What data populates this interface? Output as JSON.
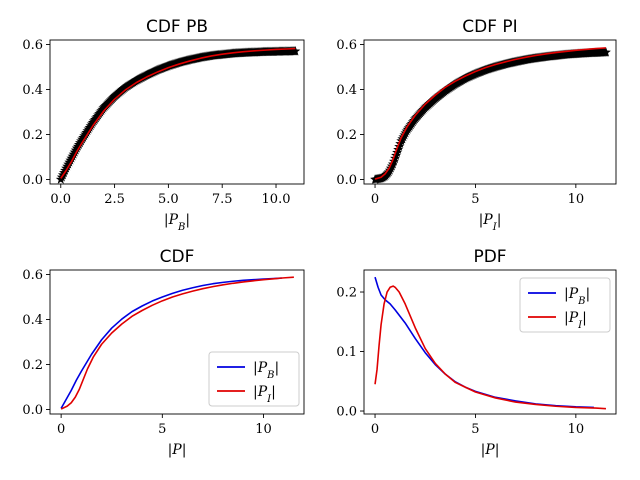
{
  "chart_data": [
    {
      "type": "line",
      "title": "CDF PB",
      "xlabel": "|P_B|",
      "ylabel": "",
      "xlim": [
        -0.5,
        11.3
      ],
      "ylim": [
        -0.02,
        0.62
      ],
      "xticks": [
        0.0,
        2.5,
        5.0,
        7.5,
        10.0
      ],
      "xtick_labels": [
        "0.0",
        "2.5",
        "5.0",
        "7.5",
        "10.0"
      ],
      "yticks": [
        0.0,
        0.2,
        0.4,
        0.6
      ],
      "ytick_labels": [
        "0.0",
        "0.2",
        "0.4",
        "0.6"
      ],
      "series": [
        {
          "style": "star-markers",
          "color": "#000000",
          "x": [
            0,
            0.25,
            0.5,
            0.75,
            1.0,
            1.5,
            2.0,
            2.5,
            3.0,
            3.5,
            4.0,
            4.5,
            5.0,
            5.5,
            6.0,
            6.5,
            7.0,
            7.5,
            8.0,
            8.5,
            9.0,
            9.5,
            10.0,
            10.5,
            10.9
          ],
          "values": [
            0.0,
            0.05,
            0.095,
            0.14,
            0.18,
            0.255,
            0.32,
            0.37,
            0.41,
            0.44,
            0.465,
            0.487,
            0.505,
            0.52,
            0.532,
            0.542,
            0.55,
            0.555,
            0.56,
            0.563,
            0.565,
            0.567,
            0.568,
            0.569,
            0.57
          ]
        },
        {
          "style": "line",
          "color": "#e00000",
          "x": [
            0,
            0.25,
            0.5,
            0.75,
            1.0,
            1.5,
            2.0,
            2.5,
            3.0,
            3.5,
            4.0,
            4.5,
            5.0,
            5.5,
            6.0,
            6.5,
            7.0,
            7.5,
            8.0,
            8.5,
            9.0,
            9.5,
            10.0,
            10.5,
            10.9
          ],
          "values": [
            0.005,
            0.04,
            0.08,
            0.125,
            0.165,
            0.24,
            0.305,
            0.357,
            0.398,
            0.43,
            0.456,
            0.478,
            0.497,
            0.513,
            0.527,
            0.539,
            0.549,
            0.557,
            0.563,
            0.568,
            0.572,
            0.575,
            0.578,
            0.58,
            0.582
          ]
        }
      ]
    },
    {
      "type": "line",
      "title": "CDF PI",
      "xlabel": "|P_I|",
      "ylabel": "",
      "xlim": [
        -0.55,
        12.0
      ],
      "ylim": [
        -0.02,
        0.62
      ],
      "xticks": [
        0,
        5,
        10
      ],
      "xtick_labels": [
        "0",
        "5",
        "10"
      ],
      "yticks": [
        0.0,
        0.2,
        0.4,
        0.6
      ],
      "ytick_labels": [
        "0.0",
        "0.2",
        "0.4",
        "0.6"
      ],
      "series": [
        {
          "style": "star-markers",
          "color": "#000000",
          "x": [
            0,
            0.3,
            0.5,
            0.7,
            0.9,
            1.1,
            1.3,
            1.6,
            2.0,
            2.5,
            3.0,
            3.5,
            4.0,
            4.5,
            5.0,
            5.5,
            6.0,
            6.5,
            7.0,
            7.5,
            8.0,
            8.5,
            9.0,
            9.5,
            10.0,
            10.5,
            11.0,
            11.5
          ],
          "values": [
            0.0,
            0.005,
            0.015,
            0.035,
            0.07,
            0.12,
            0.17,
            0.22,
            0.27,
            0.32,
            0.36,
            0.395,
            0.425,
            0.45,
            0.47,
            0.487,
            0.501,
            0.513,
            0.523,
            0.532,
            0.539,
            0.545,
            0.55,
            0.555,
            0.558,
            0.561,
            0.563,
            0.565
          ]
        },
        {
          "style": "line",
          "color": "#e00000",
          "x": [
            0,
            0.3,
            0.5,
            0.7,
            0.9,
            1.1,
            1.3,
            1.6,
            2.0,
            2.5,
            3.0,
            3.5,
            4.0,
            4.5,
            5.0,
            5.5,
            6.0,
            6.5,
            7.0,
            7.5,
            8.0,
            8.5,
            9.0,
            9.5,
            10.0,
            10.5,
            11.0,
            11.5
          ],
          "values": [
            0.002,
            0.01,
            0.025,
            0.05,
            0.09,
            0.14,
            0.185,
            0.235,
            0.285,
            0.335,
            0.375,
            0.41,
            0.437,
            0.46,
            0.48,
            0.497,
            0.511,
            0.523,
            0.534,
            0.543,
            0.551,
            0.558,
            0.564,
            0.569,
            0.574,
            0.578,
            0.582,
            0.585
          ]
        }
      ]
    },
    {
      "type": "line",
      "title": "CDF",
      "xlabel": "|P|",
      "ylabel": "",
      "xlim": [
        -0.55,
        12.0
      ],
      "ylim": [
        -0.02,
        0.62
      ],
      "xticks": [
        0,
        5,
        10
      ],
      "xtick_labels": [
        "0",
        "5",
        "10"
      ],
      "yticks": [
        0.0,
        0.2,
        0.4,
        0.6
      ],
      "ytick_labels": [
        "0.0",
        "0.2",
        "0.4",
        "0.6"
      ],
      "legend": "lower-right",
      "series": [
        {
          "name": "|P_B|",
          "color": "#0000e0",
          "x": [
            0,
            0.25,
            0.5,
            0.75,
            1.0,
            1.5,
            2.0,
            2.5,
            3.0,
            3.5,
            4.0,
            4.5,
            5.0,
            5.5,
            6.0,
            6.5,
            7.0,
            7.5,
            8.0,
            8.5,
            9.0,
            9.5,
            10.0,
            10.5,
            10.9
          ],
          "values": [
            0.005,
            0.045,
            0.085,
            0.13,
            0.17,
            0.245,
            0.31,
            0.362,
            0.402,
            0.435,
            0.46,
            0.482,
            0.5,
            0.516,
            0.53,
            0.541,
            0.551,
            0.559,
            0.565,
            0.57,
            0.574,
            0.577,
            0.58,
            0.582,
            0.584
          ]
        },
        {
          "name": "|P_I|",
          "color": "#e00000",
          "x": [
            0,
            0.3,
            0.5,
            0.7,
            0.9,
            1.1,
            1.3,
            1.6,
            2.0,
            2.5,
            3.0,
            3.5,
            4.0,
            4.5,
            5.0,
            5.5,
            6.0,
            6.5,
            7.0,
            7.5,
            8.0,
            8.5,
            9.0,
            9.5,
            10.0,
            10.5,
            11.0,
            11.5
          ],
          "values": [
            0.002,
            0.015,
            0.03,
            0.055,
            0.09,
            0.135,
            0.18,
            0.235,
            0.29,
            0.34,
            0.38,
            0.414,
            0.44,
            0.463,
            0.483,
            0.5,
            0.514,
            0.526,
            0.537,
            0.546,
            0.554,
            0.561,
            0.567,
            0.572,
            0.577,
            0.581,
            0.585,
            0.588
          ]
        }
      ]
    },
    {
      "type": "line",
      "title": "PDF",
      "xlabel": "|P|",
      "ylabel": "",
      "xlim": [
        -0.55,
        12.0
      ],
      "ylim": [
        -0.005,
        0.237
      ],
      "xticks": [
        0,
        5,
        10
      ],
      "xtick_labels": [
        "0",
        "5",
        "10"
      ],
      "yticks": [
        0.0,
        0.1,
        0.2
      ],
      "ytick_labels": [
        "0.0",
        "0.1",
        "0.2"
      ],
      "legend": "top-right",
      "series": [
        {
          "name": "|P_B|",
          "color": "#0000e0",
          "x": [
            0,
            0.15,
            0.3,
            0.5,
            0.75,
            1.0,
            1.5,
            2.0,
            2.5,
            3.0,
            3.5,
            4.0,
            4.5,
            5.0,
            6.0,
            7.0,
            8.0,
            9.0,
            10.0,
            10.9
          ],
          "values": [
            0.225,
            0.208,
            0.195,
            0.187,
            0.18,
            0.17,
            0.148,
            0.122,
            0.098,
            0.078,
            0.062,
            0.049,
            0.04,
            0.033,
            0.023,
            0.017,
            0.012,
            0.009,
            0.007,
            0.006
          ]
        },
        {
          "name": "|P_I|",
          "color": "#e00000",
          "x": [
            0,
            0.1,
            0.2,
            0.3,
            0.45,
            0.6,
            0.75,
            0.9,
            1.0,
            1.2,
            1.5,
            2.0,
            2.5,
            3.0,
            3.5,
            4.0,
            4.5,
            5.0,
            6.0,
            7.0,
            8.0,
            9.0,
            10.0,
            11.0,
            11.5
          ],
          "values": [
            0.045,
            0.07,
            0.11,
            0.145,
            0.18,
            0.2,
            0.208,
            0.21,
            0.208,
            0.2,
            0.18,
            0.14,
            0.105,
            0.08,
            0.062,
            0.048,
            0.04,
            0.032,
            0.022,
            0.015,
            0.011,
            0.008,
            0.006,
            0.005,
            0.004
          ]
        }
      ]
    }
  ]
}
